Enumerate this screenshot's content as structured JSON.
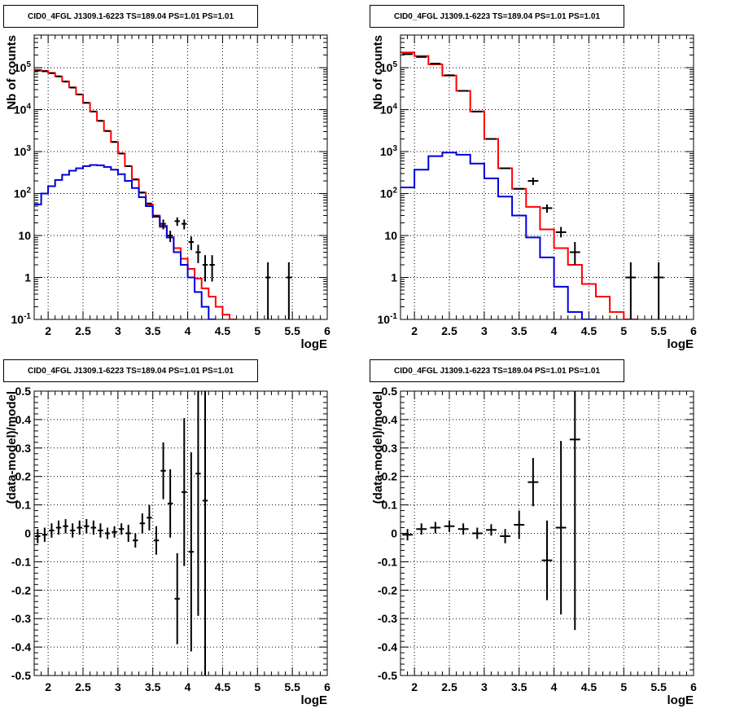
{
  "chart_data": [
    {
      "type": "line",
      "title": "CID0_4FGL J1309.1-6223 TS=189.04 PS=1.01 PS=1.01",
      "xlabel": "logE",
      "ylabel": "Nb of counts",
      "xlim": [
        1.8,
        6
      ],
      "ylim": [
        0.1,
        600000
      ],
      "yscale": "log",
      "grid": true,
      "xticks": [
        "2",
        "2.5",
        "3",
        "3.5",
        "4",
        "4.5",
        "5",
        "5.5",
        "6"
      ],
      "yticks": [
        "10^-1",
        "1",
        "10",
        "10^2",
        "10^3",
        "10^4",
        "10^5"
      ],
      "bin_edges": [
        1.8,
        1.9,
        2.0,
        2.1,
        2.2,
        2.3,
        2.4,
        2.5,
        2.6,
        2.7,
        2.8,
        2.9,
        3.0,
        3.1,
        3.2,
        3.3,
        3.4,
        3.5,
        3.6,
        3.7,
        3.8,
        3.9,
        4.0,
        4.1,
        4.2,
        4.3,
        4.4,
        4.5,
        4.6,
        4.7,
        4.8,
        4.9,
        5.0,
        5.1,
        5.2,
        5.3,
        5.4,
        5.5,
        5.6,
        5.7,
        5.8,
        5.9,
        6.0
      ],
      "series": [
        {
          "color": "#ff0000",
          "values": [
            88000,
            84000,
            75000,
            62000,
            47000,
            34000,
            23000,
            14500,
            9000,
            5400,
            3100,
            1700,
            900,
            450,
            220,
            105,
            55,
            30,
            16,
            9,
            5,
            2.8,
            1.6,
            0.95,
            0.55,
            0.35,
            0.2,
            0.13,
            0.1
          ]
        },
        {
          "color": "#0000dd",
          "values": [
            55,
            100,
            150,
            210,
            280,
            350,
            400,
            450,
            480,
            470,
            430,
            370,
            290,
            200,
            135,
            82,
            50,
            28,
            17,
            9,
            4,
            2,
            1,
            0.45,
            0.2,
            0.1
          ]
        }
      ],
      "points": [
        {
          "x": 1.85,
          "y": 85000
        },
        {
          "x": 1.95,
          "y": 82000
        },
        {
          "x": 2.05,
          "y": 74000
        },
        {
          "x": 2.15,
          "y": 62000
        },
        {
          "x": 2.25,
          "y": 46500
        },
        {
          "x": 2.35,
          "y": 33500
        },
        {
          "x": 2.45,
          "y": 23000
        },
        {
          "x": 2.55,
          "y": 14600
        },
        {
          "x": 2.65,
          "y": 9000
        },
        {
          "x": 2.75,
          "y": 5400
        },
        {
          "x": 2.85,
          "y": 3100
        },
        {
          "x": 2.95,
          "y": 1700
        },
        {
          "x": 3.05,
          "y": 900
        },
        {
          "x": 3.15,
          "y": 450
        },
        {
          "x": 3.25,
          "y": 215
        },
        {
          "x": 3.35,
          "y": 106
        },
        {
          "x": 3.45,
          "y": 58
        },
        {
          "x": 3.55,
          "y": 29
        },
        {
          "x": 3.65,
          "y": 19,
          "ylo": 14,
          "yhi": 24
        },
        {
          "x": 3.75,
          "y": 10,
          "ylo": 7,
          "yhi": 13
        },
        {
          "x": 3.85,
          "y": 22,
          "ylo": 17,
          "yhi": 27
        },
        {
          "x": 3.95,
          "y": 19,
          "ylo": 14,
          "yhi": 24
        },
        {
          "x": 4.05,
          "y": 7,
          "ylo": 4.5,
          "yhi": 9.5
        },
        {
          "x": 4.15,
          "y": 4,
          "ylo": 2.2,
          "yhi": 6
        },
        {
          "x": 4.25,
          "y": 2,
          "ylo": 0.8,
          "yhi": 3.4
        },
        {
          "x": 4.35,
          "y": 2,
          "ylo": 0.8,
          "yhi": 3.4
        },
        {
          "x": 5.15,
          "y": 1,
          "ylo": 0.1,
          "yhi": 2.3
        },
        {
          "x": 5.45,
          "y": 1,
          "ylo": 0.1,
          "yhi": 2.3
        }
      ]
    },
    {
      "type": "line",
      "title": "CID0_4FGL J1309.1-6223 TS=189.04 PS=1.01 PS=1.01",
      "xlabel": "logE",
      "ylabel": "Nb of counts",
      "xlim": [
        1.8,
        6
      ],
      "ylim": [
        0.1,
        600000
      ],
      "yscale": "log",
      "grid": true,
      "xticks": [
        "2",
        "2.5",
        "3",
        "3.5",
        "4",
        "4.5",
        "5",
        "5.5",
        "6"
      ],
      "yticks": [
        "10^-1",
        "1",
        "10",
        "10^2",
        "10^3",
        "10^4",
        "10^5"
      ],
      "bin_edges": [
        1.8,
        2.0,
        2.2,
        2.4,
        2.6,
        2.8,
        3.0,
        3.2,
        3.4,
        3.6,
        3.8,
        4.0,
        4.2,
        4.4,
        4.6,
        4.8,
        5.0,
        5.2,
        5.4,
        5.6,
        5.8,
        6.0
      ],
      "series": [
        {
          "color": "#ff0000",
          "values": [
            230000,
            190000,
            120000,
            65000,
            28000,
            9000,
            2000,
            400,
            130,
            48,
            14,
            5,
            2,
            0.7,
            0.35,
            0.15,
            0.1
          ]
        },
        {
          "color": "#0000dd",
          "values": [
            140,
            370,
            780,
            950,
            840,
            520,
            230,
            85,
            30,
            9,
            3,
            0.6,
            0.15,
            0.1
          ]
        }
      ],
      "points": [
        {
          "x": 1.9,
          "y": 210000
        },
        {
          "x": 2.1,
          "y": 180000
        },
        {
          "x": 2.3,
          "y": 125000
        },
        {
          "x": 2.5,
          "y": 66000
        },
        {
          "x": 2.7,
          "y": 28000
        },
        {
          "x": 2.9,
          "y": 9000
        },
        {
          "x": 3.1,
          "y": 2000
        },
        {
          "x": 3.3,
          "y": 400
        },
        {
          "x": 3.5,
          "y": 130
        },
        {
          "x": 3.7,
          "y": 200,
          "ylo": 160,
          "yhi": 240
        },
        {
          "x": 3.9,
          "y": 45,
          "ylo": 35,
          "yhi": 55
        },
        {
          "x": 4.1,
          "y": 12,
          "ylo": 9,
          "yhi": 16
        },
        {
          "x": 4.3,
          "y": 4,
          "ylo": 2,
          "yhi": 7
        },
        {
          "x": 5.1,
          "y": 1,
          "ylo": 0.1,
          "yhi": 2.3
        },
        {
          "x": 5.5,
          "y": 1,
          "ylo": 0.1,
          "yhi": 2.3
        }
      ]
    },
    {
      "type": "scatter",
      "title": "CID0_4FGL J1309.1-6223 TS=189.04 PS=1.01 PS=1.01",
      "xlabel": "logE",
      "ylabel": "(data-model)/model",
      "xlim": [
        1.8,
        6
      ],
      "ylim": [
        -0.5,
        0.5
      ],
      "grid": true,
      "xticks": [
        "2",
        "2.5",
        "3",
        "3.5",
        "4",
        "4.5",
        "5",
        "5.5",
        "6"
      ],
      "yticks": [
        "-0.5",
        "-0.4",
        "-0.3",
        "-0.2",
        "-0.1",
        "0",
        "0.1",
        "0.2",
        "0.3",
        "0.4",
        "0.5"
      ],
      "points": [
        {
          "x": 1.85,
          "y": -0.01,
          "err": 0.025
        },
        {
          "x": 1.95,
          "y": -0.005,
          "err": 0.025
        },
        {
          "x": 2.05,
          "y": 0.01,
          "err": 0.025
        },
        {
          "x": 2.15,
          "y": 0.02,
          "err": 0.025
        },
        {
          "x": 2.25,
          "y": 0.025,
          "err": 0.025
        },
        {
          "x": 2.35,
          "y": 0.01,
          "err": 0.025
        },
        {
          "x": 2.45,
          "y": 0.02,
          "err": 0.025
        },
        {
          "x": 2.55,
          "y": 0.025,
          "err": 0.025
        },
        {
          "x": 2.65,
          "y": 0.02,
          "err": 0.025
        },
        {
          "x": 2.75,
          "y": 0.01,
          "err": 0.025
        },
        {
          "x": 2.85,
          "y": 0.0,
          "err": 0.02
        },
        {
          "x": 2.95,
          "y": 0.005,
          "err": 0.02
        },
        {
          "x": 3.05,
          "y": 0.015,
          "err": 0.02
        },
        {
          "x": 3.15,
          "y": 0.0,
          "err": 0.03
        },
        {
          "x": 3.25,
          "y": -0.025,
          "err": 0.025
        },
        {
          "x": 3.35,
          "y": 0.035,
          "err": 0.035
        },
        {
          "x": 3.45,
          "y": 0.055,
          "err": 0.045
        },
        {
          "x": 3.55,
          "y": -0.025,
          "err": 0.05
        },
        {
          "x": 3.65,
          "y": 0.22,
          "err": 0.1
        },
        {
          "x": 3.75,
          "y": 0.105,
          "err": 0.12
        },
        {
          "x": 3.85,
          "y": -0.23,
          "err": 0.16
        },
        {
          "x": 3.95,
          "y": 0.145,
          "err": 0.26
        },
        {
          "x": 4.05,
          "y": -0.065,
          "err": 0.35
        },
        {
          "x": 4.15,
          "y": 0.21,
          "err": 0.5
        },
        {
          "x": 4.25,
          "y": 0.115,
          "err": 0.7
        }
      ]
    },
    {
      "type": "scatter",
      "title": "CID0_4FGL J1309.1-6223 TS=189.04 PS=1.01 PS=1.01",
      "xlabel": "logE",
      "ylabel": "(data-model)/model",
      "xlim": [
        1.8,
        6
      ],
      "ylim": [
        -0.5,
        0.5
      ],
      "grid": true,
      "xticks": [
        "2",
        "2.5",
        "3",
        "3.5",
        "4",
        "4.5",
        "5",
        "5.5",
        "6"
      ],
      "yticks": [
        "-0.5",
        "-0.4",
        "-0.3",
        "-0.2",
        "-0.1",
        "0",
        "0.1",
        "0.2",
        "0.3",
        "0.4",
        "0.5"
      ],
      "points": [
        {
          "x": 1.9,
          "y": -0.005,
          "err": 0.02
        },
        {
          "x": 2.1,
          "y": 0.015,
          "err": 0.02
        },
        {
          "x": 2.3,
          "y": 0.02,
          "err": 0.02
        },
        {
          "x": 2.5,
          "y": 0.025,
          "err": 0.02
        },
        {
          "x": 2.7,
          "y": 0.015,
          "err": 0.02
        },
        {
          "x": 2.9,
          "y": 0.0,
          "err": 0.02
        },
        {
          "x": 3.1,
          "y": 0.012,
          "err": 0.02
        },
        {
          "x": 3.3,
          "y": -0.01,
          "err": 0.025
        },
        {
          "x": 3.5,
          "y": 0.03,
          "err": 0.05
        },
        {
          "x": 3.7,
          "y": 0.18,
          "err": 0.085
        },
        {
          "x": 3.9,
          "y": -0.095,
          "err": 0.14
        },
        {
          "x": 4.1,
          "y": 0.02,
          "err": 0.305
        },
        {
          "x": 4.3,
          "y": 0.33,
          "err": 0.67
        }
      ]
    }
  ]
}
